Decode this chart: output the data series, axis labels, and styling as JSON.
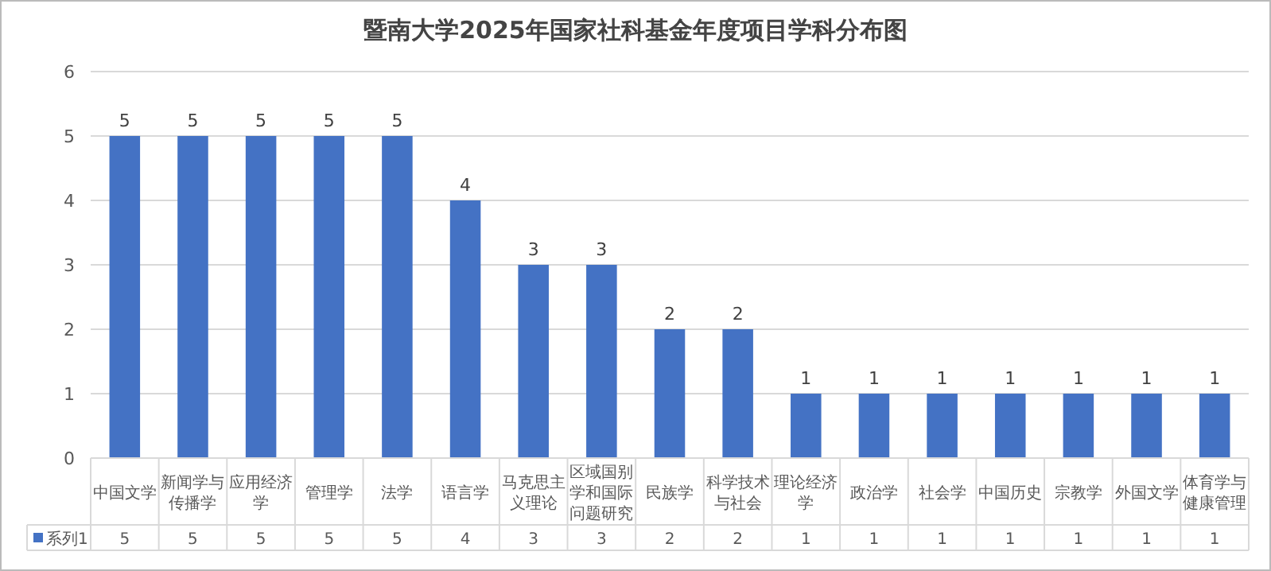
{
  "chart_data": {
    "type": "bar",
    "title": "暨南大学2025年国家社科基金年度项目学科分布图",
    "categories": [
      "中国文学",
      "新闻学与传播学",
      "应用经济学",
      "管理学",
      "法学",
      "语言学",
      "马克思主义理论",
      "区域国别学和国际问题研究",
      "民族学",
      "科学技术与社会",
      "理论经济学",
      "政治学",
      "社会学",
      "中国历史",
      "宗教学",
      "外国文学",
      "体育学与健康管理"
    ],
    "series": [
      {
        "name": "系列1",
        "color": "#4472c4",
        "values": [
          5,
          5,
          5,
          5,
          5,
          4,
          3,
          3,
          2,
          2,
          1,
          1,
          1,
          1,
          1,
          1,
          1
        ],
        "value_labels": [
          "5",
          "5",
          "5",
          "5",
          "5",
          "4",
          "3",
          "3",
          "2",
          "2",
          "1",
          "1",
          "1",
          "1",
          "1",
          "1",
          "1"
        ]
      }
    ],
    "ylim": [
      0,
      6
    ],
    "yticks": [
      0,
      1,
      2,
      3,
      4,
      5,
      6
    ],
    "grid": "y",
    "data_labels": true,
    "legend": "bottom"
  }
}
